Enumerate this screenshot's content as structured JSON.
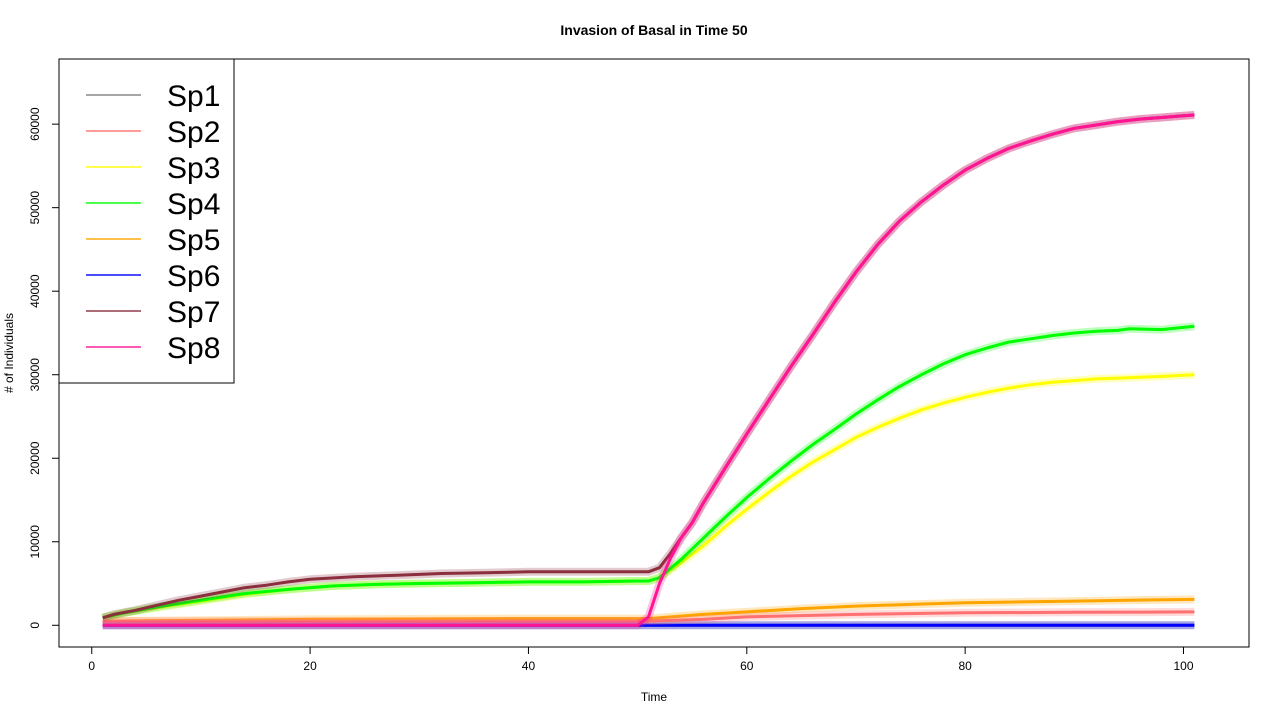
{
  "chart_data": {
    "type": "line",
    "title": "Invasion of Basal in Time 50",
    "xlabel": "Time",
    "ylabel": "# of Individuals",
    "xlim": [
      -3,
      106
    ],
    "ylim": [
      -2600,
      67800
    ],
    "x_ticks": [
      0,
      20,
      40,
      60,
      80,
      100
    ],
    "y_ticks": [
      0,
      10000,
      20000,
      30000,
      40000,
      50000,
      60000
    ],
    "legend_position": "top-left",
    "grid": false,
    "series": [
      {
        "name": "Sp1",
        "color": "#808080",
        "x": [
          1,
          101
        ],
        "y": [
          0,
          0
        ]
      },
      {
        "name": "Sp2",
        "color": "#ff7070",
        "x": [
          1,
          51,
          56,
          60,
          70,
          80,
          90,
          101
        ],
        "y": [
          500,
          500,
          700,
          1000,
          1300,
          1500,
          1550,
          1600
        ]
      },
      {
        "name": "Sp3",
        "color": "#ffff00",
        "x": [
          1,
          3,
          6,
          10,
          14,
          18,
          22,
          26,
          30,
          35,
          40,
          45,
          50,
          51,
          52,
          54,
          56,
          58,
          60,
          62,
          64,
          66,
          68,
          70,
          72,
          74,
          76,
          78,
          80,
          82,
          84,
          86,
          88,
          90,
          92,
          94,
          96,
          98,
          101
        ],
        "y": [
          900,
          1500,
          2100,
          2900,
          3700,
          4300,
          4700,
          4900,
          5000,
          5100,
          5200,
          5200,
          5300,
          5300,
          5700,
          7500,
          9500,
          11800,
          13900,
          15900,
          17800,
          19500,
          21000,
          22500,
          23700,
          24800,
          25800,
          26600,
          27300,
          27900,
          28400,
          28800,
          29100,
          29300,
          29500,
          29600,
          29700,
          29800,
          30000
        ]
      },
      {
        "name": "Sp4",
        "color": "#00ff00",
        "x": [
          1,
          3,
          6,
          10,
          14,
          18,
          22,
          26,
          30,
          35,
          40,
          45,
          50,
          51,
          52,
          54,
          56,
          58,
          60,
          62,
          64,
          66,
          68,
          70,
          72,
          74,
          76,
          78,
          80,
          82,
          84,
          86,
          88,
          90,
          92,
          94,
          95,
          98,
          101
        ],
        "y": [
          900,
          1500,
          2200,
          3000,
          3800,
          4300,
          4700,
          4900,
          5000,
          5100,
          5200,
          5200,
          5300,
          5300,
          5700,
          7900,
          10400,
          12900,
          15300,
          17500,
          19600,
          21600,
          23400,
          25300,
          27000,
          28600,
          30000,
          31300,
          32400,
          33200,
          33900,
          34300,
          34700,
          35000,
          35200,
          35300,
          35500,
          35400,
          35800
        ]
      },
      {
        "name": "Sp5",
        "color": "#ffa500",
        "x": [
          1,
          20,
          40,
          51,
          52,
          56,
          60,
          65,
          70,
          75,
          80,
          85,
          90,
          95,
          101
        ],
        "y": [
          500,
          700,
          800,
          800,
          900,
          1300,
          1600,
          2000,
          2300,
          2500,
          2700,
          2800,
          2900,
          3000,
          3100
        ]
      },
      {
        "name": "Sp6",
        "color": "#0000ff",
        "x": [
          1,
          101
        ],
        "y": [
          0,
          0
        ]
      },
      {
        "name": "Sp7",
        "color": "#8b2e3e",
        "x": [
          1,
          2,
          4,
          6,
          8,
          10,
          12,
          14,
          16,
          18,
          20,
          24,
          28,
          32,
          36,
          40,
          44,
          48,
          50,
          51,
          52,
          53,
          54,
          55,
          56,
          58,
          60,
          62,
          64,
          66,
          68,
          70,
          72,
          74,
          76,
          78,
          80,
          82,
          84,
          86,
          88,
          90,
          92,
          94,
          96,
          98,
          100,
          101
        ],
        "y": [
          900,
          1300,
          1800,
          2400,
          3000,
          3500,
          4000,
          4500,
          4800,
          5200,
          5500,
          5800,
          6000,
          6200,
          6300,
          6400,
          6400,
          6400,
          6400,
          6400,
          6900,
          8600,
          10500,
          12300,
          14600,
          18800,
          22900,
          26900,
          30900,
          34700,
          38600,
          42300,
          45600,
          48400,
          50700,
          52700,
          54500,
          55900,
          57100,
          58000,
          58800,
          59500,
          59900,
          60300,
          60600,
          60800,
          61000,
          61100
        ]
      },
      {
        "name": "Sp8",
        "color": "#ff1493",
        "x": [
          1,
          50,
          51,
          52,
          53,
          54,
          55,
          56,
          58,
          60,
          62,
          64,
          66,
          68,
          70,
          72,
          74,
          76,
          78,
          80,
          82,
          84,
          86,
          88,
          90,
          92,
          94,
          96,
          98,
          100,
          101
        ],
        "y": [
          0,
          0,
          1000,
          5000,
          8000,
          10500,
          12300,
          14600,
          18800,
          22900,
          26900,
          30900,
          34700,
          38600,
          42300,
          45600,
          48400,
          50700,
          52700,
          54500,
          55900,
          57100,
          58000,
          58800,
          59500,
          59900,
          60300,
          60600,
          60800,
          61000,
          61100
        ]
      }
    ]
  }
}
